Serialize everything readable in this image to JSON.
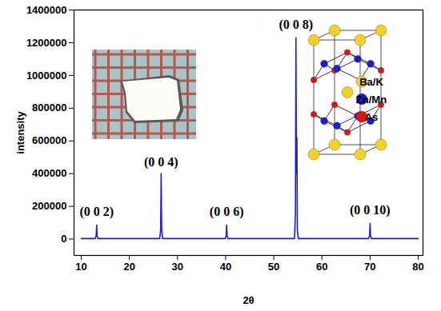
{
  "chart_data": {
    "type": "line",
    "x_label": "2θ",
    "y_label": "intensity",
    "color": "#1c1ce0",
    "x": [
      10,
      12.9,
      13.1,
      13.2,
      13.3,
      13.5,
      26.3,
      26.5,
      26.6,
      26.7,
      26.9,
      39.9,
      40.1,
      40.2,
      40.3,
      40.5,
      54.3,
      54.5,
      54.6,
      54.7,
      54.8,
      54.9,
      55.1,
      69.7,
      69.9,
      70.0,
      70.1,
      70.3,
      80
    ],
    "values": [
      3000,
      3000,
      20000,
      85000,
      20000,
      3000,
      3000,
      60000,
      400000,
      60000,
      3000,
      3000,
      20000,
      85000,
      20000,
      3000,
      3000,
      150000,
      1230000,
      400000,
      620000,
      50000,
      3000,
      3000,
      20000,
      95000,
      20000,
      3000,
      3000
    ],
    "xlim": [
      8.5,
      81
    ],
    "ylim": [
      -100000,
      1400000
    ],
    "xticks": [
      10,
      20,
      30,
      40,
      50,
      60,
      70,
      80
    ],
    "yticks": [
      0,
      200000,
      400000,
      600000,
      800000,
      1000000,
      1200000,
      1400000
    ],
    "grid": false,
    "annotations": [
      {
        "text": "(0 0 2)",
        "x": 13.2,
        "y": 165000
      },
      {
        "text": "(0 0 4)",
        "x": 26.6,
        "y": 470000
      },
      {
        "text": "(0 0 6)",
        "x": 40.2,
        "y": 165000
      },
      {
        "text": "(0 0 8)",
        "x": 54.6,
        "y": 1310000
      },
      {
        "text": "(0 0 10)",
        "x": 70.0,
        "y": 175000
      }
    ],
    "structure_legend": [
      {
        "name": "Ba/K",
        "color": "#f2d21e"
      },
      {
        "name": "Zn/Mn",
        "color": "#1a1ad8"
      },
      {
        "name": "As",
        "color": "#e0140f"
      }
    ]
  }
}
